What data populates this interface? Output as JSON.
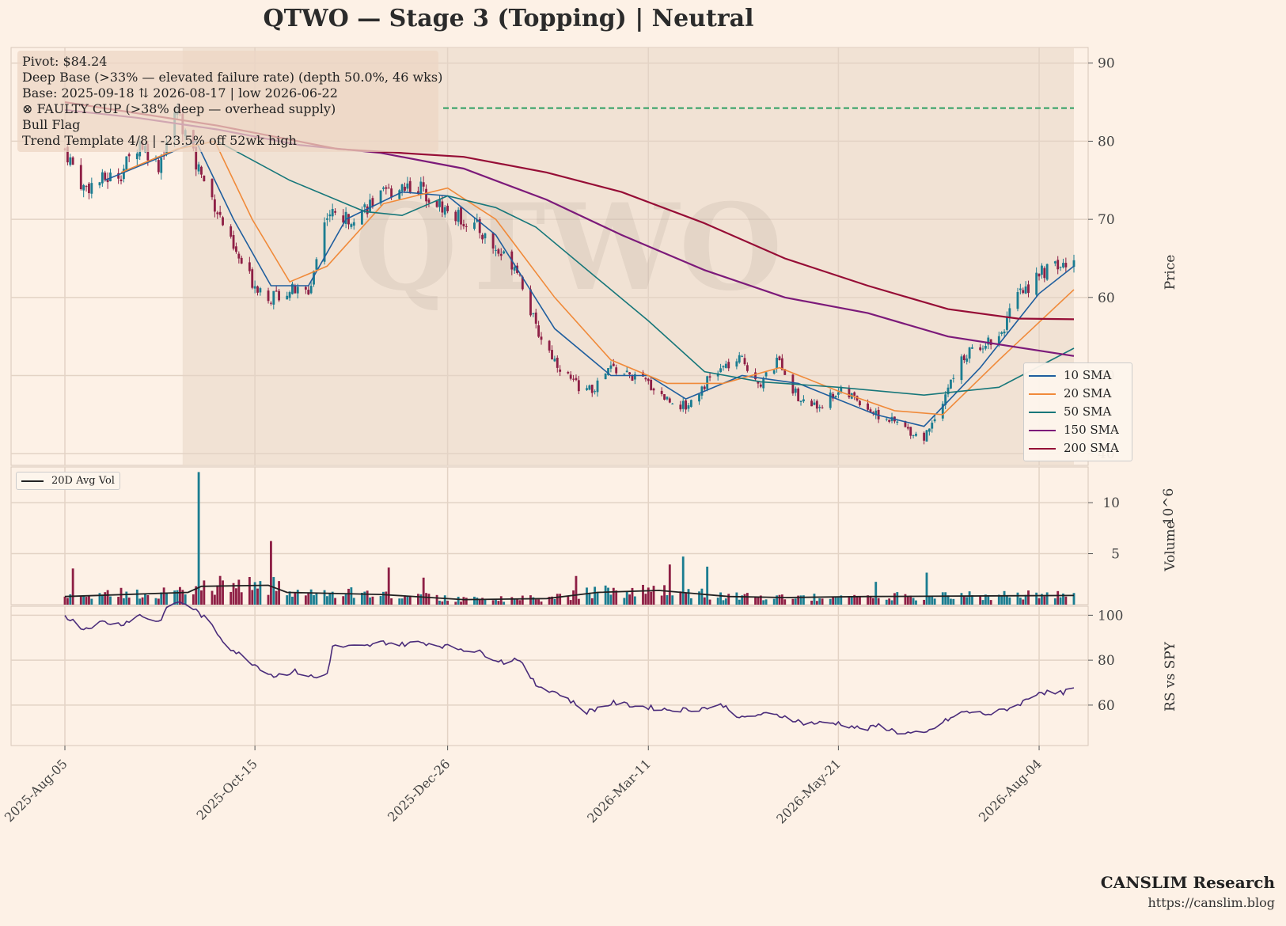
{
  "title": "QTWO  —  Stage 3 (Topping)  |  Neutral",
  "watermark": "QTWO",
  "info_lines": [
    "Pivot: $84.24",
    "Deep Base (>33% — elevated failure rate)  (depth 50.0%, 46 wks)",
    "Base: 2025-09-18 ⇅ 2026-08-17  |  low 2026-06-22",
    "⊗ FAULTY CUP (>38% deep — overhead supply)",
    "Bull Flag",
    "Trend Template 4/8  |  -23.5% off 52wk high"
  ],
  "credits": {
    "org": "CANSLIM Research",
    "url": "https://canslim.blog"
  },
  "colors": {
    "background": "#fdf1e6",
    "base_shade": "#ecdccd",
    "up": "#1b7d91",
    "down": "#8e1f45",
    "pivot": "#1e9a5a",
    "sma10": "#1f5e9e",
    "sma20": "#f08a3a",
    "sma50": "#17777a",
    "sma150": "#7c1a7a",
    "sma200": "#960d36",
    "avg_vol": "#222222",
    "rs": "#4a2b7a"
  },
  "chart_data": [
    {
      "type": "candlestick",
      "panel": "price",
      "ylabel": "Price",
      "ylim": [
        38.5,
        92
      ],
      "yticks": [
        40,
        50,
        60,
        70,
        80,
        90
      ],
      "pivot": 84.24,
      "base_start": "2025-09-18",
      "base_end": "2026-08-17",
      "x_start": "2025-08-05",
      "x_end": "2026-08-17",
      "xticks": [
        "2025-Aug-05",
        "2025-Oct-15",
        "2025-Dec-26",
        "2026-Mar-11",
        "2026-May-21",
        "2026-Aug-04"
      ],
      "close_path": [
        [
          "2025-08-05",
          79
        ],
        [
          "2025-08-12",
          74
        ],
        [
          "2025-08-19",
          75
        ],
        [
          "2025-08-26",
          76
        ],
        [
          "2025-09-02",
          80
        ],
        [
          "2025-09-09",
          77
        ],
        [
          "2025-09-16",
          84
        ],
        [
          "2025-09-23",
          77
        ],
        [
          "2025-09-30",
          72
        ],
        [
          "2025-10-07",
          66
        ],
        [
          "2025-10-14",
          62
        ],
        [
          "2025-10-21",
          60
        ],
        [
          "2025-10-28",
          61
        ],
        [
          "2025-11-04",
          60.5
        ],
        [
          "2025-11-11",
          71
        ],
        [
          "2025-11-18",
          70
        ],
        [
          "2025-11-25",
          71.5
        ],
        [
          "2025-12-02",
          73
        ],
        [
          "2025-12-09",
          74.5
        ],
        [
          "2025-12-16",
          74
        ],
        [
          "2025-12-26",
          71
        ],
        [
          "2026-01-06",
          69
        ],
        [
          "2026-01-13",
          66
        ],
        [
          "2026-01-21",
          64
        ],
        [
          "2026-01-28",
          56
        ],
        [
          "2026-02-04",
          52
        ],
        [
          "2026-02-11",
          49
        ],
        [
          "2026-02-18",
          48
        ],
        [
          "2026-02-25",
          51
        ],
        [
          "2026-03-04",
          50
        ],
        [
          "2026-03-11",
          49
        ],
        [
          "2026-03-18",
          47
        ],
        [
          "2026-03-25",
          46
        ],
        [
          "2026-04-01",
          49
        ],
        [
          "2026-04-08",
          51
        ],
        [
          "2026-04-15",
          52
        ],
        [
          "2026-04-22",
          49
        ],
        [
          "2026-04-29",
          52
        ],
        [
          "2026-05-06",
          47
        ],
        [
          "2026-05-13",
          46
        ],
        [
          "2026-05-21",
          48
        ],
        [
          "2026-05-28",
          47
        ],
        [
          "2026-06-04",
          45
        ],
        [
          "2026-06-11",
          44
        ],
        [
          "2026-06-22",
          42
        ],
        [
          "2026-06-29",
          47
        ],
        [
          "2026-07-06",
          52
        ],
        [
          "2026-07-13",
          54
        ],
        [
          "2026-07-20",
          55
        ],
        [
          "2026-07-27",
          60
        ],
        [
          "2026-08-04",
          63
        ],
        [
          "2026-08-11",
          64
        ],
        [
          "2026-08-17",
          64
        ]
      ],
      "sma": [
        {
          "name": "10 SMA",
          "points": [
            [
              "2025-08-20",
              75
            ],
            [
              "2025-09-10",
              78
            ],
            [
              "2025-09-23",
              80
            ],
            [
              "2025-10-07",
              70
            ],
            [
              "2025-10-21",
              61.5
            ],
            [
              "2025-11-04",
              61.5
            ],
            [
              "2025-11-18",
              70
            ],
            [
              "2025-12-09",
              73.5
            ],
            [
              "2025-12-26",
              73
            ],
            [
              "2026-01-13",
              68
            ],
            [
              "2026-02-04",
              56
            ],
            [
              "2026-02-25",
              50
            ],
            [
              "2026-03-11",
              50
            ],
            [
              "2026-03-25",
              47
            ],
            [
              "2026-04-15",
              50
            ],
            [
              "2026-05-06",
              49
            ],
            [
              "2026-06-04",
              45
            ],
            [
              "2026-06-22",
              43.5
            ],
            [
              "2026-07-13",
              51
            ],
            [
              "2026-08-04",
              60.5
            ],
            [
              "2026-08-17",
              64
            ]
          ]
        },
        {
          "name": "20 SMA",
          "points": [
            [
              "2025-08-26",
              76
            ],
            [
              "2025-09-16",
              79
            ],
            [
              "2025-09-30",
              80
            ],
            [
              "2025-10-14",
              70
            ],
            [
              "2025-10-28",
              62
            ],
            [
              "2025-11-11",
              64
            ],
            [
              "2025-12-02",
              72
            ],
            [
              "2025-12-26",
              74
            ],
            [
              "2026-01-13",
              70
            ],
            [
              "2026-02-04",
              60
            ],
            [
              "2026-02-25",
              52
            ],
            [
              "2026-03-18",
              49
            ],
            [
              "2026-04-08",
              49
            ],
            [
              "2026-04-29",
              51
            ],
            [
              "2026-05-21",
              48
            ],
            [
              "2026-06-11",
              45.5
            ],
            [
              "2026-06-29",
              45
            ],
            [
              "2026-07-20",
              52
            ],
            [
              "2026-08-17",
              61
            ]
          ]
        },
        {
          "name": "50 SMA",
          "points": [
            [
              "2025-10-01",
              80
            ],
            [
              "2025-10-28",
              75
            ],
            [
              "2025-11-25",
              71
            ],
            [
              "2025-12-09",
              70.5
            ],
            [
              "2025-12-26",
              73
            ],
            [
              "2026-01-13",
              71.5
            ],
            [
              "2026-01-28",
              69
            ],
            [
              "2026-02-18",
              63
            ],
            [
              "2026-03-11",
              57
            ],
            [
              "2026-04-01",
              50.5
            ],
            [
              "2026-04-22",
              49.2
            ],
            [
              "2026-05-21",
              48.5
            ],
            [
              "2026-06-22",
              47.5
            ],
            [
              "2026-07-20",
              48.5
            ],
            [
              "2026-08-17",
              53.5
            ]
          ]
        },
        {
          "name": "150 SMA",
          "points": [
            [
              "2025-08-05",
              84
            ],
            [
              "2025-09-01",
              83
            ],
            [
              "2025-10-01",
              81.5
            ],
            [
              "2025-11-01",
              79.5
            ],
            [
              "2025-12-01",
              78.5
            ],
            [
              "2026-01-01",
              76.5
            ],
            [
              "2026-02-01",
              72.5
            ],
            [
              "2026-03-01",
              68
            ],
            [
              "2026-04-01",
              63.5
            ],
            [
              "2026-05-01",
              60
            ],
            [
              "2026-06-01",
              58
            ],
            [
              "2026-07-01",
              55
            ],
            [
              "2026-08-17",
              52.5
            ]
          ]
        },
        {
          "name": "200 SMA",
          "points": [
            [
              "2025-08-05",
              85
            ],
            [
              "2025-10-01",
              82
            ],
            [
              "2025-11-15",
              79
            ],
            [
              "2026-01-01",
              78
            ],
            [
              "2026-02-01",
              76
            ],
            [
              "2026-03-01",
              73.5
            ],
            [
              "2026-04-01",
              69.5
            ],
            [
              "2026-05-01",
              65
            ],
            [
              "2026-06-01",
              61.5
            ],
            [
              "2026-07-01",
              58.5
            ],
            [
              "2026-07-27",
              57.3
            ],
            [
              "2026-08-17",
              57.2
            ]
          ]
        }
      ]
    },
    {
      "type": "bar",
      "panel": "volume",
      "ylabel": "Volume",
      "exponent": "10^6",
      "ylim": [
        0,
        13.5
      ],
      "yticks": [
        5,
        10
      ],
      "avg_label": "20D Avg Vol",
      "spike": {
        "date": "2025-09-24",
        "value": 13
      },
      "avg_path": [
        [
          "2025-08-05",
          0.8
        ],
        [
          "2025-09-20",
          1.2
        ],
        [
          "2025-09-25",
          1.8
        ],
        [
          "2025-10-20",
          1.9
        ],
        [
          "2025-10-27",
          1.2
        ],
        [
          "2025-12-01",
          1.0
        ],
        [
          "2026-01-01",
          0.5
        ],
        [
          "2026-02-01",
          0.6
        ],
        [
          "2026-02-20",
          1.2
        ],
        [
          "2026-03-15",
          1.4
        ],
        [
          "2026-04-10",
          0.8
        ],
        [
          "2026-05-01",
          0.7
        ],
        [
          "2026-06-01",
          0.8
        ],
        [
          "2026-08-17",
          0.9
        ]
      ]
    },
    {
      "type": "line",
      "panel": "rs",
      "ylabel": "RS vs SPY",
      "ylim": [
        42,
        104
      ],
      "yticks": [
        60,
        80,
        100
      ],
      "points": [
        [
          "2025-08-05",
          100
        ],
        [
          "2025-08-12",
          94
        ],
        [
          "2025-08-19",
          97
        ],
        [
          "2025-08-26",
          96
        ],
        [
          "2025-09-02",
          100
        ],
        [
          "2025-09-09",
          97
        ],
        [
          "2025-09-14",
          106
        ],
        [
          "2025-09-20",
          105
        ],
        [
          "2025-09-27",
          98
        ],
        [
          "2025-10-05",
          86
        ],
        [
          "2025-10-15",
          78
        ],
        [
          "2025-10-22",
          73
        ],
        [
          "2025-10-30",
          75
        ],
        [
          "2025-11-07",
          72
        ],
        [
          "2025-11-11",
          74
        ],
        [
          "2025-11-13",
          86
        ],
        [
          "2025-11-25",
          86
        ],
        [
          "2025-12-02",
          88
        ],
        [
          "2025-12-09",
          87
        ],
        [
          "2025-12-16",
          88
        ],
        [
          "2025-12-26",
          86
        ],
        [
          "2026-01-06",
          84
        ],
        [
          "2026-01-16",
          79
        ],
        [
          "2026-01-21",
          81
        ],
        [
          "2026-01-28",
          69
        ],
        [
          "2026-02-06",
          65
        ],
        [
          "2026-02-16",
          57
        ],
        [
          "2026-02-26",
          61
        ],
        [
          "2026-03-04",
          60
        ],
        [
          "2026-03-18",
          58
        ],
        [
          "2026-03-28",
          58
        ],
        [
          "2026-04-08",
          60
        ],
        [
          "2026-04-15",
          54
        ],
        [
          "2026-04-22",
          56
        ],
        [
          "2026-05-01",
          55
        ],
        [
          "2026-05-08",
          52
        ],
        [
          "2026-05-21",
          52
        ],
        [
          "2026-05-31",
          49
        ],
        [
          "2026-06-05",
          51
        ],
        [
          "2026-06-12",
          48
        ],
        [
          "2026-06-22",
          47
        ],
        [
          "2026-06-30",
          53
        ],
        [
          "2026-07-07",
          57
        ],
        [
          "2026-07-17",
          56
        ],
        [
          "2026-07-27",
          60
        ],
        [
          "2026-08-04",
          66
        ],
        [
          "2026-08-11",
          65
        ],
        [
          "2026-08-17",
          67
        ]
      ]
    }
  ]
}
